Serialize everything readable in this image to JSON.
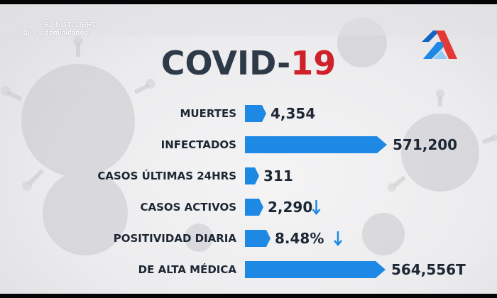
{
  "channel": {
    "line1": "EL NOTICIERO",
    "line2_a": "de los ",
    "line2_b": "dominicanos"
  },
  "title": {
    "part1": "COVID-",
    "part2": "19"
  },
  "colors": {
    "bar": "#1e88e5",
    "title": "#2e3a48",
    "accent": "#cf2129",
    "arrow": "#1e88e5"
  },
  "chart_data": {
    "type": "bar",
    "orientation": "horizontal",
    "title": "COVID-19",
    "categories": [
      "MUERTES",
      "INFECTADOS",
      "CASOS ÚLTIMAS 24HRS",
      "CASOS ACTIVOS",
      "POSITIVIDAD DIARIA",
      "DE ALTA MÉDICA"
    ],
    "values": [
      4354,
      571200,
      311,
      2290,
      8.48,
      564556
    ],
    "value_labels": [
      "4,354",
      "571,200",
      "311",
      "2,290",
      "8.48%",
      "564,556T"
    ],
    "trend": [
      "",
      "",
      "",
      "down",
      "down",
      ""
    ],
    "trend_icon": "down-arrow-icon",
    "grid": false,
    "legend": "none"
  }
}
